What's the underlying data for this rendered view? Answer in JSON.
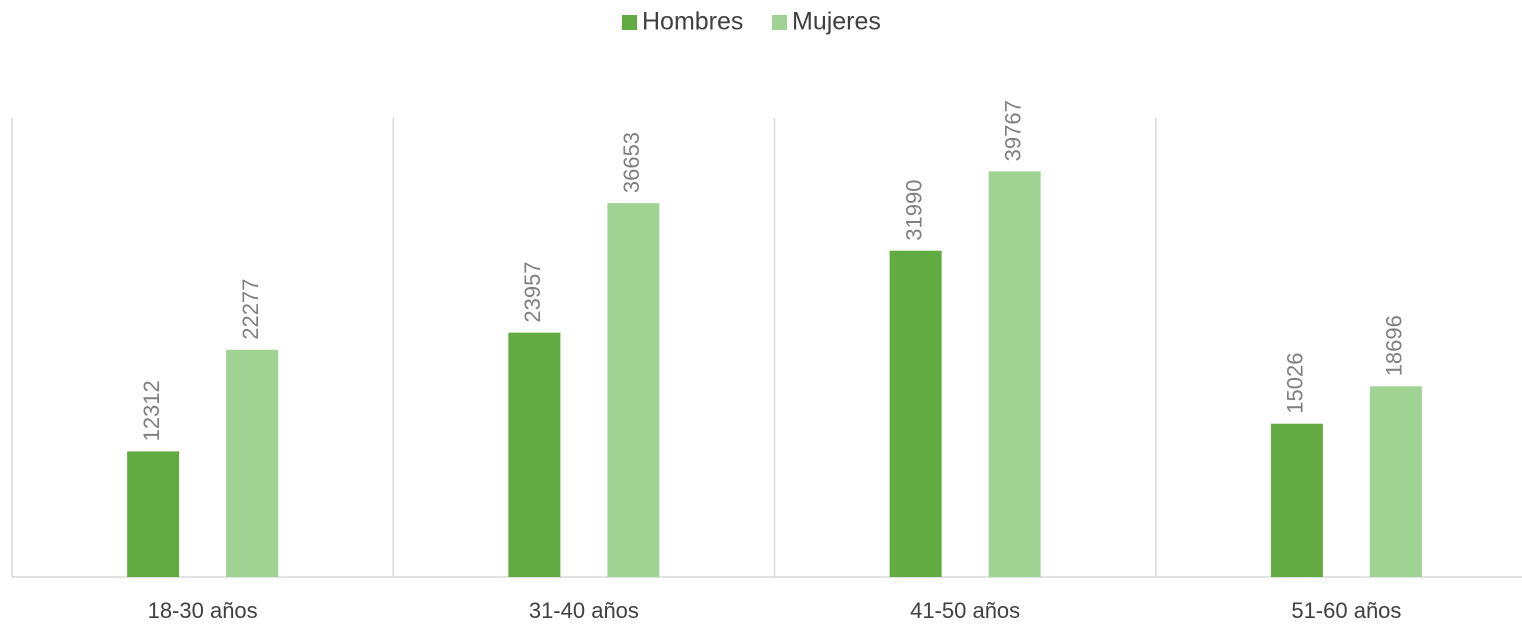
{
  "chart_data": {
    "type": "bar",
    "categories": [
      "18-30 años",
      "31-40 años",
      "41-50 años",
      "51-60 años"
    ],
    "series": [
      {
        "name": "Hombres",
        "color": "#62ab42",
        "values": [
          12312,
          23957,
          31990,
          15026
        ]
      },
      {
        "name": "Mujeres",
        "color": "#a0d393",
        "values": [
          22277,
          36653,
          39767,
          18696
        ]
      }
    ],
    "ylim": [
      0,
      45000
    ],
    "legend": "top"
  }
}
